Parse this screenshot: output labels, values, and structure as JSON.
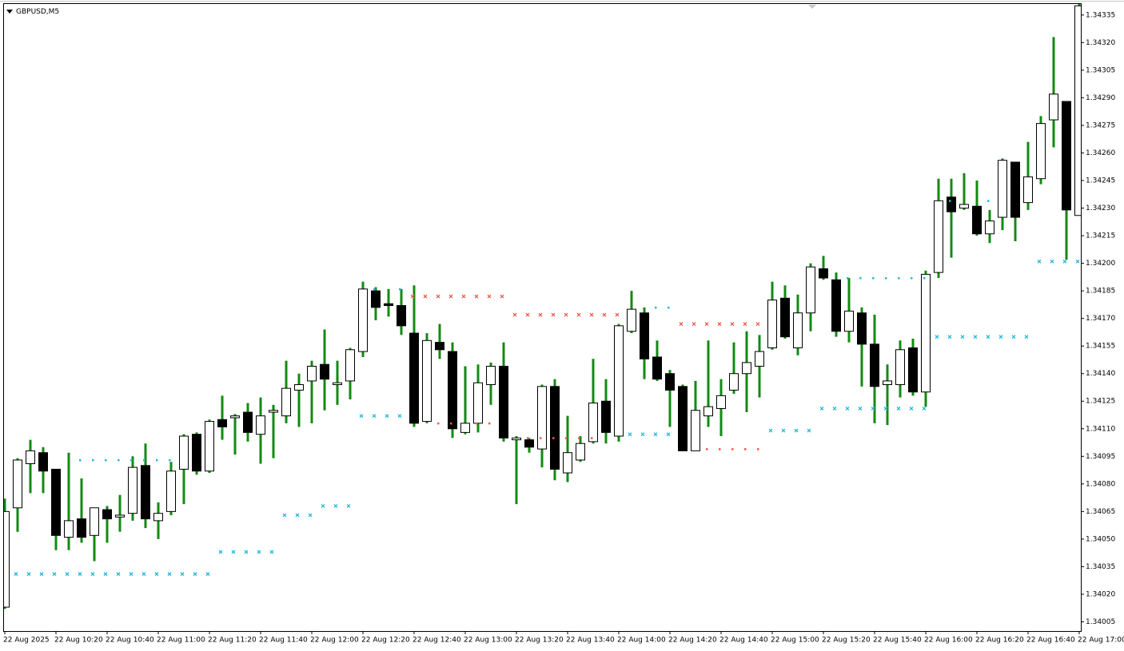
{
  "chart_data": {
    "type": "candlestick",
    "title": "GBPUSD,M5",
    "categories": [
      "22 Aug 2025",
      null,
      null,
      null,
      "22 Aug 10:20",
      null,
      null,
      null,
      "22 Aug 10:40",
      null,
      null,
      null,
      "22 Aug 11:00",
      null,
      null,
      null,
      "22 Aug 11:20",
      null,
      null,
      null,
      "22 Aug 11:40",
      null,
      null,
      null,
      "22 Aug 12:00",
      null,
      null,
      null,
      "22 Aug 12:20",
      null,
      null,
      null,
      "22 Aug 12:40",
      null,
      null,
      null,
      "22 Aug 13:00",
      null,
      null,
      null,
      "22 Aug 13:20",
      null,
      null,
      null,
      "22 Aug 13:40",
      null,
      null,
      null,
      "22 Aug 14:00",
      null,
      null,
      null,
      "22 Aug 14:20",
      null,
      null,
      null,
      "22 Aug 14:40",
      null,
      null,
      null,
      "22 Aug 15:00",
      null,
      null,
      null,
      "22 Aug 15:20",
      null,
      null,
      null,
      "22 Aug 15:40",
      null,
      null,
      null,
      "22 Aug 16:00",
      null,
      null,
      null,
      "22 Aug 16:20",
      null,
      null,
      null,
      "22 Aug 16:40",
      null,
      null,
      null,
      "22 Aug 17:00"
    ],
    "open": [
      1.34013,
      1.34067,
      1.34091,
      1.34097,
      1.34088,
      1.34051,
      1.34061,
      1.34052,
      1.34066,
      1.34062,
      1.34064,
      1.3409,
      1.3406,
      1.34065,
      1.34088,
      1.34107,
      1.34087,
      1.34115,
      1.34116,
      1.34119,
      1.34107,
      1.34119,
      1.34117,
      1.34131,
      1.34136,
      1.34145,
      1.34134,
      1.34136,
      1.34152,
      1.34185,
      1.34178,
      1.34177,
      1.34162,
      1.34114,
      1.34157,
      1.34152,
      1.34108,
      1.34113,
      1.34134,
      1.34144,
      1.34104,
      1.34104,
      1.34099,
      1.34133,
      1.34086,
      1.34093,
      1.34103,
      1.34125,
      1.34106,
      1.34163,
      1.34173,
      1.34149,
      1.3414,
      1.34133,
      1.34098,
      1.34117,
      1.34121,
      1.34131,
      1.3414,
      1.34144,
      1.34154,
      1.34181,
      1.34154,
      1.34173,
      1.34197,
      1.34191,
      1.34163,
      1.34173,
      1.34156,
      1.34134,
      1.34134,
      1.34154,
      1.3413,
      1.34195,
      1.34236,
      1.3423,
      1.34231,
      1.34216,
      1.34225,
      1.34255,
      1.34233,
      1.34246,
      1.34278,
      1.34288,
      1.34226
    ],
    "high": [
      1.34072,
      1.34094,
      1.34104,
      1.341,
      1.34088,
      1.34097,
      1.34083,
      1.34067,
      1.34068,
      1.34074,
      1.34095,
      1.34102,
      1.3407,
      1.34092,
      1.34107,
      1.34108,
      1.34115,
      1.34128,
      1.34118,
      1.34124,
      1.34127,
      1.34123,
      1.34147,
      1.3414,
      1.34147,
      1.34164,
      1.34147,
      1.34154,
      1.3419,
      1.34187,
      1.34186,
      1.34186,
      1.34188,
      1.34162,
      1.34167,
      1.34157,
      1.34144,
      1.34145,
      1.34146,
      1.34157,
      1.34106,
      1.34105,
      1.34134,
      1.34137,
      1.34117,
      1.34106,
      1.34148,
      1.34137,
      1.34167,
      1.34185,
      1.34176,
      1.34158,
      1.34142,
      1.34134,
      1.34136,
      1.34158,
      1.34137,
      1.34157,
      1.34163,
      1.34161,
      1.3419,
      1.34188,
      1.34183,
      1.342,
      1.34204,
      1.34195,
      1.34192,
      1.34176,
      1.34172,
      1.34145,
      1.34158,
      1.34159,
      1.34196,
      1.34246,
      1.34246,
      1.34249,
      1.34245,
      1.34229,
      1.34257,
      1.34255,
      1.34266,
      1.3428,
      1.34323,
      1.34288,
      1.34341
    ],
    "low": [
      1.34012,
      1.34054,
      1.34075,
      1.34075,
      1.34044,
      1.34044,
      1.34048,
      1.34038,
      1.34048,
      1.34054,
      1.3406,
      1.34056,
      1.3405,
      1.34063,
      1.34069,
      1.34085,
      1.34086,
      1.34104,
      1.34096,
      1.34103,
      1.34091,
      1.34094,
      1.34113,
      1.34111,
      1.34113,
      1.3412,
      1.34123,
      1.34126,
      1.34149,
      1.34169,
      1.34171,
      1.34161,
      1.34111,
      1.34113,
      1.34148,
      1.34105,
      1.34107,
      1.34108,
      1.34123,
      1.34103,
      1.34069,
      1.34097,
      1.34089,
      1.34082,
      1.34081,
      1.34092,
      1.34102,
      1.34102,
      1.34103,
      1.34162,
      1.34137,
      1.34136,
      1.34111,
      1.34098,
      1.34098,
      1.34111,
      1.34106,
      1.34129,
      1.34119,
      1.34127,
      1.34153,
      1.34159,
      1.3415,
      1.34163,
      1.34191,
      1.3416,
      1.34157,
      1.34133,
      1.34113,
      1.34112,
      1.34127,
      1.34128,
      1.34122,
      1.34192,
      1.34203,
      1.34229,
      1.34215,
      1.34211,
      1.34218,
      1.34212,
      1.34229,
      1.34243,
      1.34263,
      1.34202,
      1.34226
    ],
    "close": [
      1.34065,
      1.34093,
      1.34098,
      1.34087,
      1.34052,
      1.3406,
      1.34051,
      1.34067,
      1.34061,
      1.34063,
      1.34089,
      1.34061,
      1.34064,
      1.34087,
      1.34106,
      1.34087,
      1.34114,
      1.34111,
      1.34117,
      1.34108,
      1.34117,
      1.3412,
      1.34132,
      1.34134,
      1.34144,
      1.34137,
      1.34135,
      1.34153,
      1.34186,
      1.34176,
      1.34177,
      1.34166,
      1.34113,
      1.34158,
      1.34153,
      1.3411,
      1.34113,
      1.34135,
      1.34144,
      1.34105,
      1.34105,
      1.341,
      1.34133,
      1.34088,
      1.34097,
      1.34102,
      1.34124,
      1.34108,
      1.34166,
      1.34175,
      1.34148,
      1.34137,
      1.34131,
      1.34098,
      1.3412,
      1.34122,
      1.34128,
      1.3414,
      1.34146,
      1.34152,
      1.3418,
      1.3416,
      1.34173,
      1.34198,
      1.34192,
      1.34163,
      1.34174,
      1.34156,
      1.34133,
      1.34136,
      1.34153,
      1.3413,
      1.34194,
      1.34234,
      1.34228,
      1.34232,
      1.34216,
      1.34223,
      1.34256,
      1.34225,
      1.34247,
      1.34276,
      1.34292,
      1.34229,
      1.3434
    ],
    "wick_color": "#138a13",
    "up_color": "#ffffff",
    "down_color": "#000000",
    "overlays": [
      {
        "shape": "cross",
        "color": "#22b8dc",
        "values": [
          null,
          1.34031,
          1.34031,
          1.34031,
          1.34031,
          1.34031,
          1.34031,
          1.34031,
          1.34031,
          1.34031,
          1.34031,
          1.34031,
          1.34031,
          1.34031,
          1.34031,
          1.34031,
          1.34031,
          1.34043,
          1.34043,
          1.34043,
          1.34043,
          1.34043,
          1.34063,
          1.34063,
          1.34063,
          1.34068,
          1.34068,
          1.34068,
          1.34117,
          1.34117,
          1.34117,
          1.34117,
          null,
          null,
          null,
          null,
          null,
          null,
          null,
          null,
          null,
          null,
          null,
          null,
          null,
          null,
          null,
          null,
          null,
          1.34107,
          1.34107,
          1.34107,
          1.34107,
          null,
          null,
          null,
          null,
          null,
          null,
          null,
          1.34109,
          1.34109,
          1.34109,
          1.34109,
          1.34121,
          1.34121,
          1.34121,
          1.34121,
          1.34121,
          1.34121,
          1.34121,
          1.34121,
          1.34121,
          1.3416,
          1.3416,
          1.3416,
          1.3416,
          1.3416,
          1.3416,
          1.3416,
          1.3416,
          1.34201,
          1.34201,
          1.34201,
          1.34201
        ]
      },
      {
        "shape": "cross",
        "color": "#ee5a48",
        "values": [
          null,
          null,
          null,
          null,
          null,
          null,
          null,
          null,
          null,
          null,
          null,
          null,
          null,
          null,
          null,
          null,
          null,
          null,
          null,
          null,
          null,
          null,
          null,
          null,
          null,
          null,
          null,
          null,
          null,
          null,
          null,
          null,
          1.34182,
          1.34182,
          1.34182,
          1.34182,
          1.34182,
          1.34182,
          1.34182,
          1.34182,
          1.34172,
          1.34172,
          1.34172,
          1.34172,
          1.34172,
          1.34172,
          1.34172,
          1.34172,
          1.34172,
          null,
          null,
          null,
          null,
          1.34167,
          1.34167,
          1.34167,
          1.34167,
          1.34167,
          1.34167,
          1.34167,
          null,
          null,
          null,
          null,
          null,
          null,
          null,
          null,
          null,
          null,
          null,
          null,
          null,
          null,
          null,
          null,
          null,
          null,
          null,
          null,
          null,
          null,
          null,
          null,
          null
        ]
      },
      {
        "shape": "dot",
        "color": "#22b8dc",
        "values": [
          null,
          null,
          null,
          null,
          null,
          null,
          1.34093,
          1.34093,
          1.34093,
          1.34093,
          1.34093,
          1.34093,
          1.34093,
          1.34093,
          null,
          null,
          null,
          null,
          null,
          null,
          null,
          null,
          null,
          null,
          null,
          null,
          null,
          null,
          null,
          1.34186,
          null,
          1.34186,
          null,
          null,
          null,
          null,
          null,
          null,
          null,
          null,
          null,
          null,
          null,
          null,
          null,
          null,
          null,
          null,
          null,
          null,
          null,
          1.34176,
          1.34176,
          null,
          null,
          null,
          null,
          null,
          null,
          null,
          null,
          null,
          null,
          null,
          null,
          null,
          1.34192,
          1.34192,
          1.34192,
          1.34192,
          1.34192,
          1.34192,
          1.34192,
          null,
          1.34234,
          null,
          null,
          1.34234,
          null,
          null,
          null,
          null,
          null,
          null,
          null
        ]
      },
      {
        "shape": "dot",
        "color": "#ee5a48",
        "values": [
          null,
          null,
          null,
          null,
          null,
          null,
          null,
          null,
          null,
          null,
          null,
          null,
          null,
          null,
          null,
          null,
          null,
          null,
          null,
          null,
          null,
          null,
          null,
          null,
          null,
          null,
          null,
          null,
          null,
          null,
          null,
          null,
          null,
          null,
          1.34113,
          1.34113,
          null,
          1.34113,
          1.34113,
          null,
          null,
          1.34105,
          1.34105,
          1.34105,
          1.34105,
          1.34105,
          1.34105,
          null,
          null,
          null,
          null,
          null,
          null,
          null,
          null,
          1.34099,
          1.34099,
          1.34099,
          1.34099,
          1.34099,
          null,
          null,
          null,
          null,
          null,
          null,
          null,
          null,
          null,
          null,
          null,
          null,
          null,
          null,
          null,
          null,
          null,
          null,
          null,
          null,
          null,
          null,
          null,
          null,
          null
        ]
      }
    ],
    "ylim": [
      1.34,
      1.34341
    ],
    "yticks": [
      1.34005,
      {
        "value": 1.3402,
        "label": "1.34020"
      },
      1.34035,
      {
        "value": 1.3405,
        "label": "1.34050"
      },
      1.34065,
      {
        "value": 1.3408,
        "label": "1.34080"
      },
      1.34095,
      {
        "value": 1.3411,
        "label": "1.34110"
      },
      1.34125,
      {
        "value": 1.3414,
        "label": "1.34140"
      },
      1.34155,
      {
        "value": 1.3417,
        "label": "1.34170"
      },
      1.34185,
      {
        "value": 1.342,
        "label": "1.34200"
      },
      1.34215,
      {
        "value": 1.3423,
        "label": "1.34230"
      },
      1.34245,
      {
        "value": 1.3426,
        "label": "1.34260"
      },
      1.34275,
      {
        "value": 1.3429,
        "label": "1.34290"
      },
      1.34305,
      {
        "value": 1.3432,
        "label": "1.34320"
      },
      1.34335
    ]
  }
}
